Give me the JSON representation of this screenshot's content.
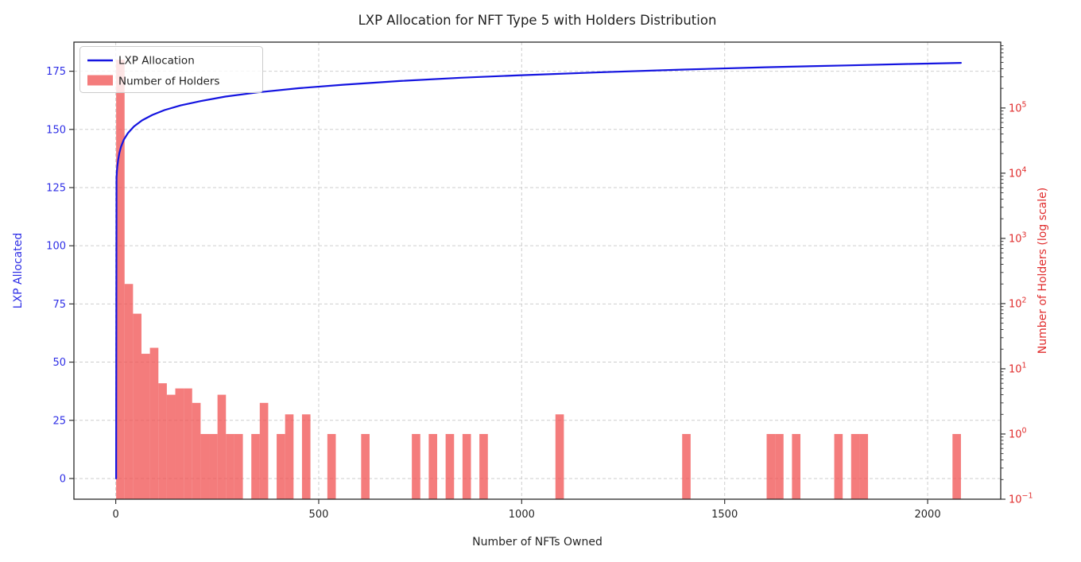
{
  "figure": {
    "background": "#ffffff"
  },
  "colors": {
    "line_blue": "#1414e0",
    "bar_red": "rgba(240,80,80,0.75)",
    "left_axis_text": "#2e2ee6",
    "right_axis_text": "#e02c2c",
    "tick_text": "#262626",
    "spine": "#2a2a2a",
    "grid": "#c9c9c9",
    "legend_border": "#cccccc",
    "legend_bg": "rgba(255,255,255,0.8)"
  },
  "legend": {
    "position": "upper left",
    "items": [
      {
        "label": "LXP Allocation",
        "swatch": "line-swatch",
        "color": "#1414e0"
      },
      {
        "label": "Number of Holders",
        "swatch": "bar-swatch",
        "color": "rgba(240,80,80,0.75)"
      }
    ]
  },
  "chart_data": {
    "type": "combo-line-histogram",
    "title": "LXP Allocation for NFT Type 5 with Holders Distribution",
    "xlabel": "Number of NFTs Owned",
    "ylabel_left": "LXP Allocated",
    "ylabel_right": "Number of Holders (log scale)",
    "x_ticks": [
      0,
      500,
      1000,
      1500,
      2000
    ],
    "y_left_ticks": [
      0,
      25,
      50,
      75,
      100,
      125,
      150,
      175
    ],
    "y_right_tick_exponents": [
      5,
      4,
      3,
      2,
      1,
      0,
      -1
    ],
    "xlim": [
      -103,
      2180
    ],
    "ylim_left": [
      -8.9,
      187.5
    ],
    "ylim_right_log10": [
      -1,
      6.01
    ],
    "grid": true,
    "grid_from": "left-axis and x-axis, dashed",
    "legend_position": "upper left",
    "series": [
      {
        "name": "LXP Allocation",
        "type": "line",
        "axis": "left",
        "color": "#1414e0",
        "points": [
          [
            1,
            0
          ],
          [
            2,
            129.2
          ],
          [
            3,
            132.1
          ],
          [
            4,
            134.1
          ],
          [
            6,
            137.0
          ],
          [
            9,
            139.9
          ],
          [
            13,
            142.5
          ],
          [
            20,
            145.6
          ],
          [
            30,
            148.4
          ],
          [
            45,
            151.3
          ],
          [
            65,
            153.9
          ],
          [
            90,
            156.2
          ],
          [
            120,
            158.3
          ],
          [
            160,
            160.3
          ],
          [
            210,
            162.2
          ],
          [
            270,
            164.1
          ],
          [
            350,
            165.9
          ],
          [
            450,
            167.7
          ],
          [
            560,
            169.2
          ],
          [
            700,
            170.8
          ],
          [
            850,
            172.2
          ],
          [
            1000,
            173.3
          ],
          [
            1200,
            174.6
          ],
          [
            1400,
            175.7
          ],
          [
            1600,
            176.7
          ],
          [
            1800,
            177.5
          ],
          [
            1950,
            178.1
          ],
          [
            2082,
            178.6
          ]
        ]
      },
      {
        "name": "Number of Holders",
        "type": "histogram",
        "axis": "right_log",
        "color": "rgba(240,80,80,0.75)",
        "bin_width": 20.81,
        "bars": [
          [
            1.0,
            21.8,
            550000
          ],
          [
            21.8,
            42.6,
            200
          ],
          [
            42.6,
            63.4,
            70
          ],
          [
            63.4,
            84.2,
            17
          ],
          [
            84.2,
            105.1,
            21
          ],
          [
            105.1,
            125.9,
            6
          ],
          [
            125.9,
            146.7,
            4
          ],
          [
            146.7,
            167.5,
            5
          ],
          [
            167.5,
            188.3,
            5
          ],
          [
            188.3,
            209.1,
            3
          ],
          [
            209.1,
            229.9,
            1
          ],
          [
            229.9,
            250.7,
            1
          ],
          [
            250.7,
            271.5,
            4
          ],
          [
            271.5,
            292.3,
            1
          ],
          [
            292.3,
            313.2,
            1
          ],
          [
            334.0,
            354.8,
            1
          ],
          [
            354.8,
            375.6,
            3
          ],
          [
            396.4,
            417.2,
            1
          ],
          [
            417.2,
            438.0,
            2
          ],
          [
            458.8,
            479.6,
            2
          ],
          [
            521.3,
            542.1,
            1
          ],
          [
            604.5,
            625.3,
            1
          ],
          [
            729.4,
            750.2,
            1
          ],
          [
            771.0,
            791.8,
            1
          ],
          [
            812.6,
            833.4,
            1
          ],
          [
            854.2,
            875.0,
            1
          ],
          [
            895.8,
            916.7,
            1
          ],
          [
            1083.1,
            1103.9,
            2
          ],
          [
            1395.3,
            1416.1,
            1
          ],
          [
            1603.4,
            1624.2,
            1
          ],
          [
            1624.2,
            1645.0,
            1
          ],
          [
            1665.8,
            1686.6,
            1
          ],
          [
            1769.9,
            1790.7,
            1
          ],
          [
            1811.5,
            1832.3,
            1
          ],
          [
            1832.3,
            1853.1,
            1
          ],
          [
            2061.2,
            2082.0,
            1
          ]
        ]
      }
    ]
  }
}
